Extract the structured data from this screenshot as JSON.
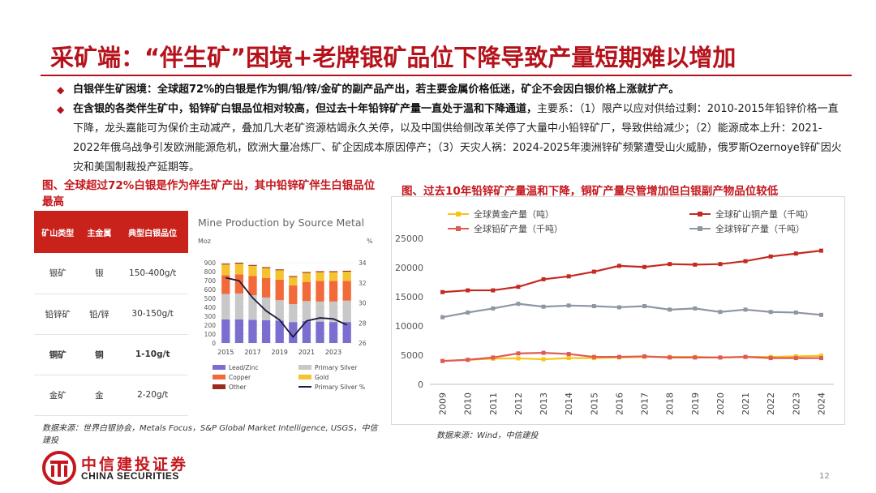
{
  "slide": {
    "title": "采矿端：“伴生矿”困境+老牌银矿品位下降导致产量短期难以增加",
    "page_number": "12"
  },
  "bullets": [
    {
      "lead": "白银伴生矿困境：全球超72%的白银是作为铜/铅/锌/金矿的副产品产出，若主要金属价格低迷，矿企不会因白银价格上涨就扩产。",
      "text": ""
    },
    {
      "lead": "在含银的各类伴生矿中，铅锌矿白银品位相对较高，但过去十年铅锌矿产量一直处于温和下降通道，",
      "text": "主要系：（1）限产以应对供给过剩：2010-2015年铅锌价格一直下降，龙头嘉能可为保价主动减产，叠加几大老矿资源枯竭永久关停，以及中国供给侧改革关停了大量中小铅锌矿厂，导致供给减少；（2）能源成本上升：2021-2022年俄乌战争引发欧洲能源危机，欧洲大量冶炼厂、矿企因成本原因停产；（3）天灾人祸：2024-2025年澳洲锌矿频繁遭受山火威胁，俄罗斯Ozernoye锌矿因火灾和美国制裁投产延期等。"
    }
  ],
  "left_figure": {
    "title": "图、全球超过72%白银是作为伴生矿产出，其中铅锌矿伴生白银品位最高",
    "table": {
      "headers": [
        "矿山类型",
        "主金属",
        "典型白银品位"
      ],
      "rows": [
        [
          "银矿",
          "银",
          "150-400g/t"
        ],
        [
          "铅锌矿",
          "铅/锌",
          "30-150g/t"
        ],
        [
          "铜矿",
          "铜",
          "1-10g/t"
        ],
        [
          "金矿",
          "金",
          "2-20g/t"
        ]
      ]
    },
    "source": "数据来源：世界白银协会，Metals Focus，S&P Global Market Intelligence, USGS，中信建投"
  },
  "mine_chart": {
    "chart_data": {
      "type": "bar",
      "title": "Mine Production by Source Metal",
      "ylabel_left": "Moz",
      "ylabel_right": "%",
      "categories": [
        "2015",
        "2016",
        "2017",
        "2018",
        "2019",
        "2020",
        "2021",
        "2022",
        "2023",
        "2024"
      ],
      "x_tick_labels": [
        "2015",
        "2017",
        "2019",
        "2021",
        "2023"
      ],
      "ylim_left": [
        0,
        900
      ],
      "yticks_left": [
        "0",
        "100",
        "200",
        "300",
        "400",
        "500",
        "600",
        "700",
        "800",
        "900"
      ],
      "ylim_right": [
        26,
        34
      ],
      "yticks_right": [
        "26",
        "28",
        "30",
        "32",
        "34"
      ],
      "series": [
        {
          "name": "Lead/Zinc",
          "color": "#7a6fd0",
          "values": [
            265,
            265,
            260,
            255,
            250,
            235,
            245,
            240,
            235,
            235
          ]
        },
        {
          "name": "Primary Silver",
          "color": "#c8c8c8",
          "values": [
            285,
            290,
            275,
            255,
            230,
            200,
            225,
            225,
            230,
            240
          ]
        },
        {
          "name": "Copper",
          "color": "#f26a3a",
          "values": [
            210,
            215,
            215,
            220,
            230,
            210,
            215,
            230,
            230,
            220
          ]
        },
        {
          "name": "Gold",
          "color": "#f4c430",
          "values": [
            120,
            120,
            115,
            110,
            105,
            95,
            100,
            100,
            100,
            105
          ]
        },
        {
          "name": "Other",
          "color": "#9a2a1a",
          "values": [
            10,
            10,
            10,
            10,
            10,
            10,
            10,
            10,
            10,
            10
          ]
        }
      ],
      "line_series": {
        "name": "Primary Silver %",
        "color": "#1a1a3a",
        "values": [
          32.5,
          32.2,
          30.5,
          29.2,
          28.3,
          26.6,
          28.2,
          28.5,
          28.4,
          27.8
        ]
      },
      "legend": [
        "Lead/Zinc",
        "Primary Silver",
        "Copper",
        "Gold",
        "Other",
        "Primary Silver %"
      ]
    }
  },
  "right_figure": {
    "title": "图、过去10年铅锌矿产量温和下降，铜矿产量尽管增加但白银副产物品位较低",
    "source": "数据来源：Wind，中信建投"
  },
  "output_chart": {
    "chart_data": {
      "type": "line",
      "title": "",
      "x": [
        "2009",
        "2010",
        "2011",
        "2012",
        "2013",
        "2014",
        "2015",
        "2016",
        "2017",
        "2018",
        "2019",
        "2020",
        "2021",
        "2022",
        "2023",
        "2024"
      ],
      "ylim": [
        0,
        25000
      ],
      "yticks": [
        "0",
        "5000",
        "10000",
        "15000",
        "20000",
        "25000"
      ],
      "series": [
        {
          "name": "全球黄金产量（吨）",
          "color": "#f5c518",
          "values": [
            4000,
            4200,
            4400,
            4450,
            4300,
            4500,
            4500,
            4600,
            4700,
            4700,
            4700,
            4600,
            4700,
            4700,
            4800,
            4900
          ]
        },
        {
          "name": "全球矿山铜产量（千吨）",
          "color": "#c42a22",
          "values": [
            15800,
            16100,
            16100,
            16700,
            18000,
            18500,
            19300,
            20300,
            20100,
            20600,
            20500,
            20600,
            21100,
            21900,
            22400,
            22900
          ]
        },
        {
          "name": "全球铅矿产量（千吨）",
          "color": "#e05a55",
          "values": [
            4000,
            4200,
            4600,
            5300,
            5400,
            5200,
            4700,
            4700,
            4800,
            4600,
            4600,
            4600,
            4700,
            4500,
            4500,
            4500
          ]
        },
        {
          "name": "全球锌矿产量（千吨）",
          "color": "#8e96a3",
          "values": [
            11500,
            12300,
            13000,
            13800,
            13300,
            13500,
            13400,
            13200,
            13400,
            12800,
            13000,
            12400,
            12800,
            12400,
            12300,
            11900
          ]
        }
      ],
      "legend": [
        "全球黄金产量（吨）",
        "全球矿山铜产量（千吨）",
        "全球铅矿产量（千吨）",
        "全球锌矿产量（千吨）"
      ]
    }
  },
  "logo": {
    "cn": "中信建投证券",
    "en": "CHINA SECURITIES"
  }
}
